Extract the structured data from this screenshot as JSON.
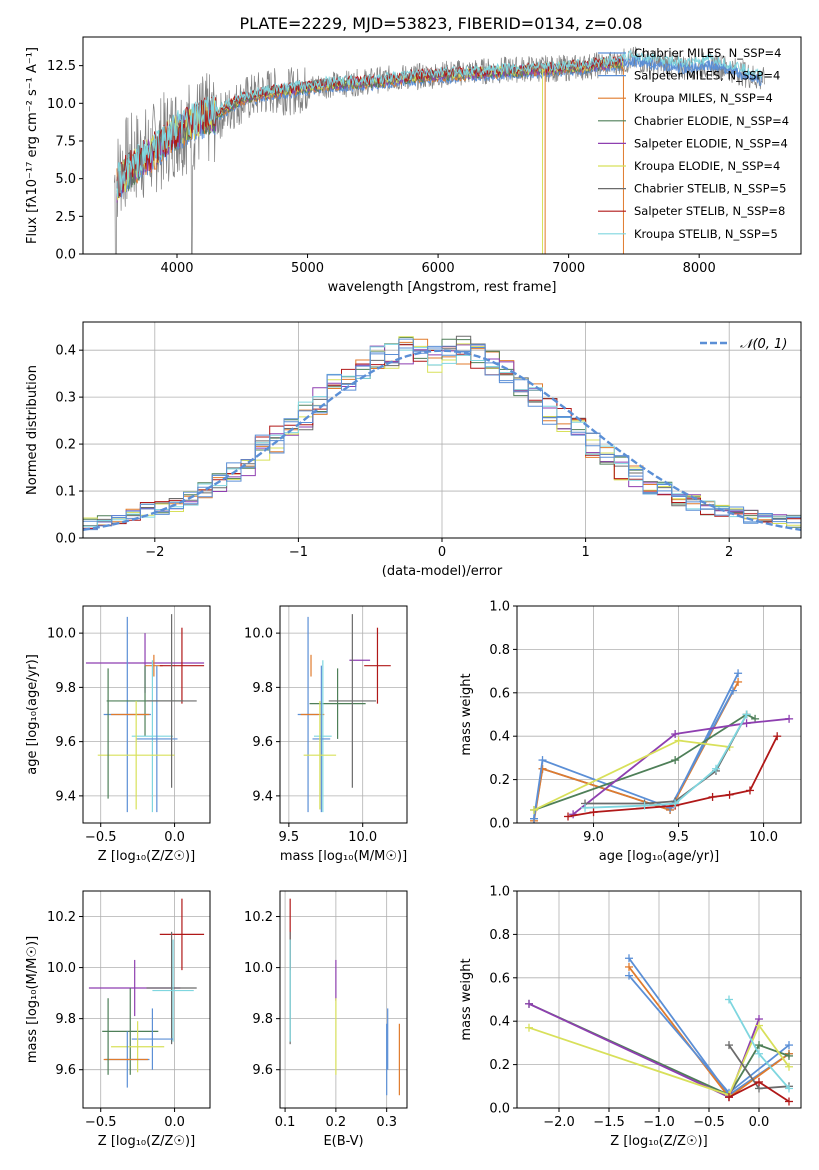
{
  "figure_title": "PLATE=2229, MJD=53823, FIBERID=0134, z=0.08",
  "colors": {
    "chabrier_miles": "#5b8fd6",
    "salpeter_miles": "#5b8fd6",
    "kroupa_miles": "#e07b2d",
    "chabrier_elodie": "#4e7f58",
    "salpeter_elodie": "#8e3fb0",
    "kroupa_elodie": "#d8e05a",
    "chabrier_stelib": "#6b6b6b",
    "salpeter_stelib": "#b01818",
    "kroupa_stelib": "#7fd6df",
    "normal_curve": "#5b8fd6",
    "grid": "#b0b0b0"
  },
  "chart_data": [
    {
      "type": "line",
      "title": "PLATE=2229, MJD=53823, FIBERID=0134, z=0.08",
      "xlabel": "wavelength [Angstrom, rest frame]",
      "ylabel": "Flux [fλ10⁻¹⁷ erg cm⁻² s⁻¹ A⁻¹]",
      "xlim": [
        3280,
        8780
      ],
      "ylim": [
        0,
        14.4
      ],
      "xticks": [
        "4000",
        "5000",
        "6000",
        "7000",
        "8000"
      ],
      "yticks": [
        "0.0",
        "2.5",
        "5.0",
        "7.5",
        "10.0",
        "12.5"
      ],
      "grid": false,
      "legend_position": "top-right",
      "legend": [
        "Chabrier MILES, N_SSP=4",
        "Salpeter MILES, N_SSP=4",
        "Kroupa MILES, N_SSP=4",
        "Chabrier ELODIE, N_SSP=4",
        "Salpeter ELODIE, N_SSP=4",
        "Kroupa ELODIE, N_SSP=4",
        "Chabrier STELIB, N_SSP=5",
        "Salpeter STELIB, N_SSP=8",
        "Kroupa STELIB, N_SSP=5"
      ],
      "observed_continuum": {
        "x": [
          3520,
          3600,
          3700,
          3800,
          3900,
          4000,
          4100,
          4200,
          4300,
          4400,
          4500,
          4700,
          4900,
          5100,
          5300,
          5500,
          5700,
          5900,
          6100,
          6300,
          6500,
          6700,
          6900,
          7100,
          7300,
          7500,
          7700,
          7900,
          8100,
          8300,
          8500
        ],
        "y": [
          4.8,
          6.0,
          6.5,
          6.8,
          7.6,
          8.3,
          8.5,
          8.8,
          9.0,
          9.6,
          10.2,
          10.8,
          10.8,
          11.2,
          11.3,
          11.5,
          11.7,
          11.8,
          12.0,
          12.1,
          12.2,
          12.3,
          12.3,
          12.4,
          12.6,
          12.9,
          12.6,
          12.4,
          12.6,
          12.1,
          11.5
        ]
      },
      "model_continuum": {
        "x": [
          3540,
          3600,
          3700,
          3800,
          3900,
          4000,
          4100,
          4200,
          4300,
          4400,
          4500,
          4700,
          4900,
          5100,
          5300,
          5500,
          5700,
          5900,
          6100,
          6300,
          6500,
          6700,
          6900,
          7100,
          7300,
          7420
        ],
        "y": [
          4.6,
          5.2,
          6.0,
          6.6,
          7.4,
          8.2,
          8.6,
          9.0,
          9.3,
          9.8,
          10.3,
          10.7,
          10.9,
          11.2,
          11.3,
          11.4,
          11.6,
          11.8,
          11.9,
          12.0,
          12.1,
          12.2,
          12.3,
          12.4,
          12.6,
          12.7
        ]
      }
    },
    {
      "type": "line",
      "xlabel": "(data-model)/error",
      "ylabel": "Normed distribution",
      "xlim": [
        -2.5,
        2.5
      ],
      "ylim": [
        0,
        0.46
      ],
      "xticks": [
        "−2",
        "−1",
        "0",
        "1",
        "2"
      ],
      "yticks": [
        "0.0",
        "0.1",
        "0.2",
        "0.3",
        "0.4"
      ],
      "grid": true,
      "legend": [
        "𝒩(0, 1)"
      ],
      "legend_position": "top-right",
      "note_histograms": "9 step histograms of normalized residuals, bin width 0.1, one per model",
      "histogram_centers": [
        -2.45,
        -2.35,
        -2.25,
        -2.15,
        -2.05,
        -1.95,
        -1.85,
        -1.75,
        -1.65,
        -1.55,
        -1.45,
        -1.35,
        -1.25,
        -1.15,
        -1.05,
        -0.95,
        -0.85,
        -0.75,
        -0.65,
        -0.55,
        -0.45,
        -0.35,
        -0.25,
        -0.15,
        -0.05,
        0.05,
        0.15,
        0.25,
        0.35,
        0.45,
        0.55,
        0.65,
        0.75,
        0.85,
        0.95,
        1.05,
        1.15,
        1.25,
        1.35,
        1.45,
        1.55,
        1.65,
        1.75,
        1.85,
        1.95,
        2.05,
        2.15,
        2.25,
        2.35,
        2.45
      ],
      "histogram_mean": [
        0.03,
        0.035,
        0.04,
        0.05,
        0.06,
        0.065,
        0.07,
        0.08,
        0.1,
        0.12,
        0.14,
        0.16,
        0.19,
        0.21,
        0.24,
        0.26,
        0.29,
        0.32,
        0.34,
        0.36,
        0.38,
        0.39,
        0.4,
        0.4,
        0.38,
        0.395,
        0.4,
        0.39,
        0.37,
        0.35,
        0.33,
        0.3,
        0.27,
        0.25,
        0.23,
        0.2,
        0.18,
        0.15,
        0.13,
        0.11,
        0.1,
        0.085,
        0.075,
        0.065,
        0.06,
        0.055,
        0.045,
        0.04,
        0.04,
        0.035
      ]
    },
    {
      "type": "scatter",
      "xlabel": "Z [log₁₀(Z/Z☉)]",
      "ylabel": "age  [log₁₀(age/yr)]",
      "xlim": [
        -0.62,
        0.24
      ],
      "ylim": [
        9.3,
        10.1
      ],
      "xticks": [
        "−0.5",
        "0.0"
      ],
      "yticks": [
        "9.4",
        "9.6",
        "9.8",
        "10.0"
      ],
      "grid": true,
      "errorbars": [
        {
          "x": -0.2,
          "y": 9.89,
          "xerr": 0.4,
          "yerr": 0.11,
          "color": "salpeter_elodie"
        },
        {
          "x": -0.32,
          "y": 9.7,
          "xerr": 0.16,
          "yerr": 0.36,
          "color": "chabrier_miles"
        },
        {
          "x": -0.14,
          "y": 9.88,
          "xerr": 0.06,
          "yerr": 0.04,
          "color": "kroupa_miles"
        },
        {
          "x": 0.05,
          "y": 9.88,
          "xerr": 0.15,
          "yerr": 0.14,
          "color": "salpeter_stelib"
        },
        {
          "x": -0.2,
          "y": 9.75,
          "xerr": 0.26,
          "yerr": 0.13,
          "color": "chabrier_elodie"
        },
        {
          "x": -0.3,
          "y": 9.7,
          "xerr": 0.13,
          "yerr": 0.0,
          "color": "kroupa_miles"
        },
        {
          "x": -0.15,
          "y": 9.62,
          "xerr": 0.14,
          "yerr": 0.28,
          "color": "kroupa_stelib"
        },
        {
          "x": -0.12,
          "y": 9.61,
          "xerr": 0.14,
          "yerr": 0.27,
          "color": "salpeter_miles"
        },
        {
          "x": -0.26,
          "y": 9.55,
          "xerr": 0.26,
          "yerr": 0.2,
          "color": "kroupa_elodie"
        },
        {
          "x": -0.02,
          "y": 9.75,
          "xerr": 0.17,
          "yerr": 0.32,
          "color": "chabrier_stelib"
        },
        {
          "x": -0.45,
          "y": 9.63,
          "xerr": 0.0,
          "yerr": 0.24,
          "color": "chabrier_elodie"
        }
      ]
    },
    {
      "type": "scatter",
      "xlabel": "mass [log₁₀(M/M☉)]",
      "ylabel": "",
      "xlim": [
        9.44,
        10.3
      ],
      "ylim": [
        9.3,
        10.1
      ],
      "xticks": [
        "9.5",
        "10.0"
      ],
      "yticks": [
        "9.4",
        "9.6",
        "9.8",
        "10.0"
      ],
      "grid": true,
      "errorbars": [
        {
          "x": 9.98,
          "y": 9.9,
          "xerr": 0.07,
          "yerr": 0.0,
          "color": "salpeter_elodie"
        },
        {
          "x": 9.63,
          "y": 9.7,
          "xerr": 0.07,
          "yerr": 0.36,
          "color": "chabrier_miles"
        },
        {
          "x": 9.65,
          "y": 9.88,
          "xerr": 0.0,
          "yerr": 0.04,
          "color": "kroupa_miles"
        },
        {
          "x": 10.1,
          "y": 9.88,
          "xerr": 0.09,
          "yerr": 0.14,
          "color": "salpeter_stelib"
        },
        {
          "x": 9.83,
          "y": 9.74,
          "xerr": 0.19,
          "yerr": 0.13,
          "color": "chabrier_elodie"
        },
        {
          "x": 9.66,
          "y": 9.7,
          "xerr": 0.08,
          "yerr": 0.0,
          "color": "kroupa_miles"
        },
        {
          "x": 9.73,
          "y": 9.62,
          "xerr": 0.06,
          "yerr": 0.28,
          "color": "kroupa_stelib"
        },
        {
          "x": 9.72,
          "y": 9.61,
          "xerr": 0.06,
          "yerr": 0.27,
          "color": "salpeter_miles"
        },
        {
          "x": 9.71,
          "y": 9.55,
          "xerr": 0.11,
          "yerr": 0.2,
          "color": "kroupa_elodie"
        },
        {
          "x": 9.93,
          "y": 9.75,
          "xerr": 0.16,
          "yerr": 0.32,
          "color": "chabrier_stelib"
        }
      ]
    },
    {
      "type": "line",
      "xlabel": "age  [log₁₀(age/yr)]",
      "ylabel": "mass weight",
      "xlim": [
        8.55,
        10.22
      ],
      "ylim": [
        0,
        1.0
      ],
      "xticks": [
        "9.0",
        "9.5",
        "10.0"
      ],
      "yticks": [
        "0.0",
        "0.2",
        "0.4",
        "0.6",
        "0.8",
        "1.0"
      ],
      "grid": true,
      "series": [
        {
          "color": "chabrier_miles",
          "x": [
            8.65,
            8.7,
            9.45,
            9.85
          ],
          "y": [
            0.02,
            0.25,
            0.06,
            0.69
          ]
        },
        {
          "color": "kroupa_miles",
          "x": [
            8.65,
            8.7,
            9.45,
            9.85
          ],
          "y": [
            0.01,
            0.25,
            0.06,
            0.65
          ]
        },
        {
          "color": "salpeter_miles",
          "x": [
            8.65,
            8.7,
            9.45,
            9.82
          ],
          "y": [
            0.02,
            0.29,
            0.07,
            0.61
          ]
        },
        {
          "color": "chabrier_elodie",
          "x": [
            8.65,
            9.48,
            9.9,
            9.95
          ],
          "y": [
            0.06,
            0.29,
            0.5,
            0.48
          ]
        },
        {
          "color": "salpeter_elodie",
          "x": [
            8.88,
            9.48,
            9.9,
            10.15
          ],
          "y": [
            0.04,
            0.41,
            0.46,
            0.48
          ]
        },
        {
          "color": "kroupa_elodie",
          "x": [
            8.65,
            9.5,
            9.8
          ],
          "y": [
            0.06,
            0.38,
            0.35
          ]
        },
        {
          "color": "chabrier_stelib",
          "x": [
            8.95,
            9.3,
            9.48,
            9.72,
            9.9
          ],
          "y": [
            0.09,
            0.09,
            0.1,
            0.24,
            0.5
          ]
        },
        {
          "color": "salpeter_stelib",
          "x": [
            8.85,
            9.0,
            9.48,
            9.7,
            9.8,
            9.92,
            10.08
          ],
          "y": [
            0.03,
            0.05,
            0.08,
            0.12,
            0.13,
            0.15,
            0.4
          ]
        },
        {
          "color": "kroupa_stelib",
          "x": [
            8.95,
            9.3,
            9.48,
            9.72,
            9.9
          ],
          "y": [
            0.07,
            0.08,
            0.09,
            0.25,
            0.5
          ]
        }
      ]
    },
    {
      "type": "scatter",
      "xlabel": "Z [log₁₀(Z/Z☉)]",
      "ylabel": "mass [log₁₀(M/M☉)]",
      "xlim": [
        -0.62,
        0.24
      ],
      "ylim": [
        9.45,
        10.3
      ],
      "xticks": [
        "−0.5",
        "0.0"
      ],
      "yticks": [
        "9.6",
        "9.8",
        "10.0",
        "10.2"
      ],
      "grid": true,
      "errorbars": [
        {
          "x": -0.27,
          "y": 9.92,
          "xerr": 0.31,
          "yerr": 0.11,
          "color": "salpeter_elodie"
        },
        {
          "x": 0.05,
          "y": 10.13,
          "xerr": 0.15,
          "yerr": 0.14,
          "color": "salpeter_stelib"
        },
        {
          "x": -0.02,
          "y": 9.92,
          "xerr": 0.17,
          "yerr": 0.22,
          "color": "chabrier_stelib"
        },
        {
          "x": -0.01,
          "y": 9.91,
          "xerr": 0.14,
          "yerr": 0.2,
          "color": "kroupa_stelib"
        },
        {
          "x": -0.3,
          "y": 9.75,
          "xerr": 0.19,
          "yerr": 0.17,
          "color": "chabrier_elodie"
        },
        {
          "x": -0.15,
          "y": 9.72,
          "xerr": 0.14,
          "yerr": 0.12,
          "color": "salpeter_miles"
        },
        {
          "x": -0.25,
          "y": 9.69,
          "xerr": 0.18,
          "yerr": 0.1,
          "color": "kroupa_elodie"
        },
        {
          "x": -0.32,
          "y": 9.64,
          "xerr": 0.15,
          "yerr": 0.11,
          "color": "chabrier_miles"
        },
        {
          "x": -0.33,
          "y": 9.64,
          "xerr": 0.15,
          "yerr": 0.0,
          "color": "kroupa_miles"
        },
        {
          "x": -0.45,
          "y": 9.73,
          "xerr": 0.0,
          "yerr": 0.15,
          "color": "chabrier_elodie"
        }
      ]
    },
    {
      "type": "scatter",
      "xlabel": "E(B-V)",
      "ylabel": "",
      "xlim": [
        0.09,
        0.34
      ],
      "ylim": [
        9.45,
        10.3
      ],
      "xticks": [
        "0.1",
        "0.2",
        "0.3"
      ],
      "yticks": [
        "9.6",
        "9.8",
        "10.0",
        "10.2"
      ],
      "grid": true,
      "errorbars": [
        {
          "x": 0.11,
          "y": 10.13,
          "xerr": 0,
          "yerr": 0.14,
          "color": "salpeter_stelib"
        },
        {
          "x": 0.11,
          "y": 9.92,
          "xerr": 0,
          "yerr": 0.22,
          "color": "chabrier_stelib"
        },
        {
          "x": 0.11,
          "y": 9.91,
          "xerr": 0,
          "yerr": 0.2,
          "color": "kroupa_stelib"
        },
        {
          "x": 0.2,
          "y": 9.95,
          "xerr": 0,
          "yerr": 0.08,
          "color": "salpeter_elodie"
        },
        {
          "x": 0.2,
          "y": 9.73,
          "xerr": 0,
          "yerr": 0.15,
          "color": "kroupa_elodie"
        },
        {
          "x": 0.3,
          "y": 9.64,
          "xerr": 0,
          "yerr": 0.14,
          "color": "chabrier_miles"
        },
        {
          "x": 0.302,
          "y": 9.72,
          "xerr": 0,
          "yerr": 0.12,
          "color": "salpeter_miles"
        },
        {
          "x": 0.325,
          "y": 9.64,
          "xerr": 0,
          "yerr": 0.14,
          "color": "kroupa_miles"
        }
      ]
    },
    {
      "type": "line",
      "xlabel": "Z [log₁₀(Z/Z☉)]",
      "ylabel": "mass weight",
      "xlim": [
        -2.42,
        0.42
      ],
      "ylim": [
        0,
        1.0
      ],
      "xticks": [
        "−2.0",
        "−1.5",
        "−1.0",
        "−0.5",
        "0.0"
      ],
      "yticks": [
        "0.0",
        "0.2",
        "0.4",
        "0.6",
        "0.8",
        "1.0"
      ],
      "grid": true,
      "series": [
        {
          "color": "chabrier_miles",
          "x": [
            -1.3,
            -0.3,
            0.3
          ],
          "y": [
            0.69,
            0.06,
            0.25
          ]
        },
        {
          "color": "kroupa_miles",
          "x": [
            -1.3,
            -0.3,
            0.3
          ],
          "y": [
            0.65,
            0.05,
            0.25
          ]
        },
        {
          "color": "salpeter_miles",
          "x": [
            -1.3,
            -0.3,
            0.3
          ],
          "y": [
            0.61,
            0.07,
            0.29
          ]
        },
        {
          "color": "chabrier_elodie",
          "x": [
            -2.3,
            -0.3,
            0.0,
            0.3
          ],
          "y": [
            0.48,
            0.06,
            0.29,
            0.24
          ]
        },
        {
          "color": "salpeter_elodie",
          "x": [
            -2.3,
            -0.3,
            0.0
          ],
          "y": [
            0.48,
            0.05,
            0.41
          ]
        },
        {
          "color": "kroupa_elodie",
          "x": [
            -2.3,
            -0.3,
            0.0,
            0.3
          ],
          "y": [
            0.37,
            0.06,
            0.38,
            0.19
          ]
        },
        {
          "color": "chabrier_stelib",
          "x": [
            -0.3,
            0.0,
            0.3
          ],
          "y": [
            0.29,
            0.09,
            0.1
          ]
        },
        {
          "color": "salpeter_stelib",
          "x": [
            -0.3,
            0.0,
            0.3
          ],
          "y": [
            0.05,
            0.12,
            0.03
          ]
        },
        {
          "color": "kroupa_stelib",
          "x": [
            -0.3,
            0.0,
            0.3
          ],
          "y": [
            0.5,
            0.25,
            0.09
          ]
        }
      ]
    }
  ]
}
